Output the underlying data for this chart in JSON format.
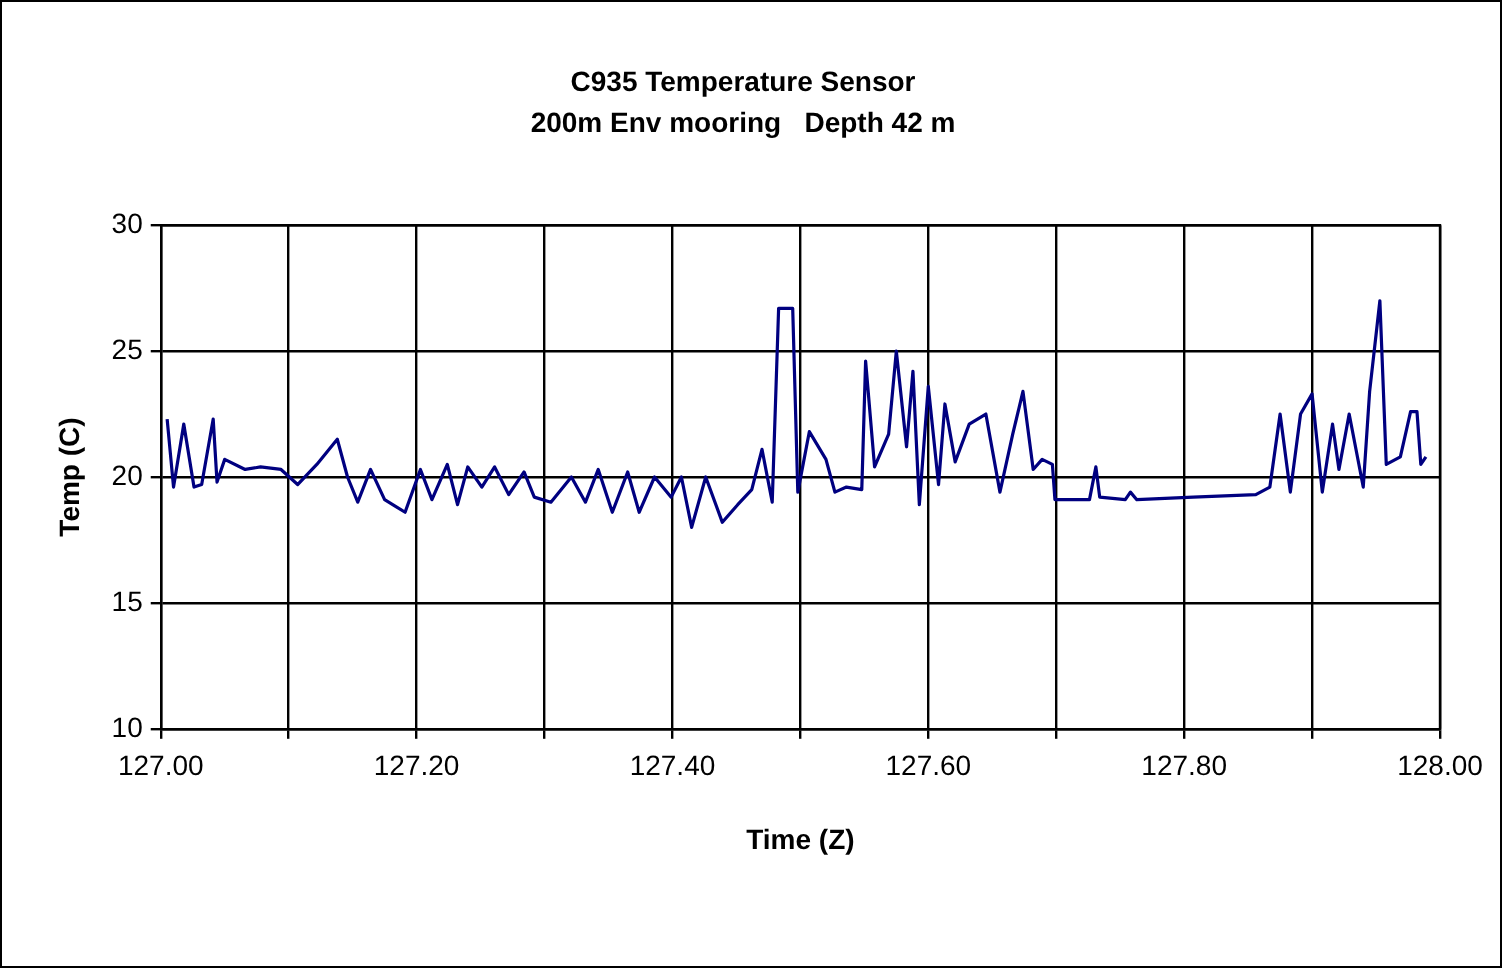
{
  "chart_data": {
    "type": "line",
    "title": "C935 Temperature Sensor",
    "subtitle": "200m Env mooring   Depth 42 m",
    "xlabel": "Time (Z)",
    "ylabel": "Temp (C)",
    "x": [
      127.005,
      127.01,
      127.018,
      127.026,
      127.032,
      127.041,
      127.044,
      127.05,
      127.066,
      127.078,
      127.094,
      127.107,
      127.122,
      127.138,
      127.146,
      127.154,
      127.164,
      127.175,
      127.191,
      127.203,
      127.212,
      127.224,
      127.232,
      127.24,
      127.251,
      127.261,
      127.272,
      127.284,
      127.292,
      127.305,
      127.321,
      127.332,
      127.342,
      127.353,
      127.365,
      127.374,
      127.386,
      127.399,
      127.407,
      127.415,
      127.426,
      127.439,
      127.451,
      127.462,
      127.47,
      127.478,
      127.483,
      127.494,
      127.498,
      127.507,
      127.52,
      127.527,
      127.536,
      127.548,
      127.551,
      127.558,
      127.569,
      127.575,
      127.583,
      127.588,
      127.593,
      127.6,
      127.608,
      127.613,
      127.621,
      127.632,
      127.645,
      127.656,
      127.666,
      127.674,
      127.682,
      127.689,
      127.697,
      127.699,
      127.726,
      127.731,
      127.734,
      127.754,
      127.758,
      127.763,
      127.807,
      127.856,
      127.867,
      127.875,
      127.883,
      127.891,
      127.9,
      127.908,
      127.916,
      127.921,
      127.929,
      127.94,
      127.945,
      127.953,
      127.958,
      127.969,
      127.977,
      127.982,
      127.985,
      127.989
    ],
    "series": [
      {
        "color": "#000080",
        "values": [
          22.3,
          19.6,
          22.1,
          19.6,
          19.7,
          22.3,
          19.8,
          20.7,
          20.3,
          20.4,
          20.3,
          19.7,
          20.5,
          21.5,
          20.0,
          19.0,
          20.3,
          19.1,
          18.6,
          20.3,
          19.1,
          20.5,
          18.9,
          20.4,
          19.6,
          20.4,
          19.3,
          20.2,
          19.2,
          19.0,
          20.0,
          19.0,
          20.3,
          18.6,
          20.2,
          18.6,
          20.0,
          19.2,
          20.0,
          18.0,
          20.0,
          18.2,
          18.9,
          19.5,
          21.1,
          19.0,
          26.7,
          26.7,
          19.4,
          21.8,
          20.7,
          19.4,
          19.6,
          19.5,
          24.6,
          20.4,
          21.7,
          25.0,
          21.2,
          24.2,
          18.9,
          23.6,
          19.7,
          22.9,
          20.6,
          22.1,
          22.5,
          19.4,
          21.7,
          23.4,
          20.3,
          20.7,
          20.5,
          19.1,
          19.1,
          20.4,
          19.2,
          19.1,
          19.4,
          19.1,
          19.2,
          19.3,
          19.6,
          22.5,
          19.4,
          22.5,
          23.3,
          19.4,
          22.1,
          20.3,
          22.5,
          19.6,
          23.4,
          27.0,
          20.5,
          20.8,
          22.6,
          22.6,
          20.5,
          20.8
        ]
      }
    ],
    "xlim": [
      127,
      128
    ],
    "xticks": [
      {
        "value": 127,
        "label": "127.00"
      },
      {
        "value": 127.1,
        "label": null
      },
      {
        "value": 127.2,
        "label": "127.20"
      },
      {
        "value": 127.3,
        "label": null
      },
      {
        "value": 127.4,
        "label": "127.40"
      },
      {
        "value": 127.5,
        "label": null
      },
      {
        "value": 127.6,
        "label": "127.60"
      },
      {
        "value": 127.7,
        "label": null
      },
      {
        "value": 127.8,
        "label": "127.80"
      },
      {
        "value": 127.9,
        "label": null
      },
      {
        "value": 128,
        "label": "128.00"
      }
    ],
    "ylim": [
      10,
      30
    ],
    "yticks": [
      10,
      15,
      20,
      25,
      30
    ],
    "grid": true,
    "legend": false,
    "marker": "none",
    "line_style": "solid"
  }
}
